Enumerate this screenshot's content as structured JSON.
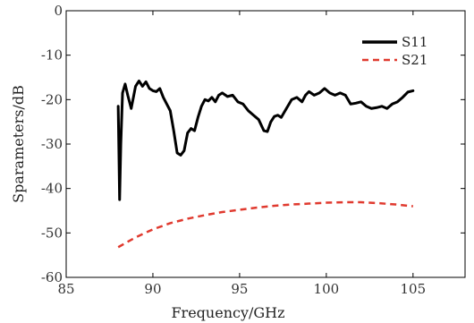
{
  "chart_data": {
    "type": "line",
    "xlabel": "Frequency/GHz",
    "ylabel": "Sparameters/dB",
    "xlim": [
      85,
      108
    ],
    "ylim": [
      -60,
      0
    ],
    "xticks": [
      85,
      90,
      95,
      100,
      105
    ],
    "yticks": [
      0,
      -10,
      -20,
      -30,
      -40,
      -50,
      -60
    ],
    "xtick_labels": [
      "85",
      "90",
      "95",
      "100",
      "105"
    ],
    "ytick_labels": [
      "0",
      "-10",
      "-20",
      "-30",
      "-40",
      "-50",
      "-60"
    ],
    "grid": false,
    "legend_position": "top-right",
    "series": [
      {
        "name": "S11",
        "color": "#000000",
        "style": "solid",
        "x": [
          88.0,
          88.08,
          88.15,
          88.25,
          88.4,
          88.55,
          88.75,
          89.0,
          89.2,
          89.4,
          89.6,
          89.8,
          90.0,
          90.2,
          90.4,
          90.6,
          90.8,
          91.0,
          91.2,
          91.4,
          91.6,
          91.8,
          92.0,
          92.2,
          92.4,
          92.6,
          92.8,
          93.0,
          93.2,
          93.4,
          93.6,
          93.8,
          94.0,
          94.3,
          94.6,
          94.9,
          95.2,
          95.5,
          95.8,
          96.1,
          96.4,
          96.6,
          96.8,
          97.0,
          97.2,
          97.4,
          97.7,
          98.0,
          98.3,
          98.6,
          98.8,
          99.0,
          99.3,
          99.6,
          99.9,
          100.2,
          100.5,
          100.8,
          101.1,
          101.4,
          101.7,
          102.0,
          102.3,
          102.6,
          102.9,
          103.2,
          103.5,
          103.8,
          104.1,
          104.4,
          104.7,
          105.0
        ],
        "y": [
          -21.5,
          -42.5,
          -30.0,
          -18.5,
          -16.5,
          -19.0,
          -22.0,
          -17.0,
          -15.8,
          -17.0,
          -16.0,
          -17.5,
          -18.0,
          -18.2,
          -17.5,
          -19.5,
          -21.0,
          -22.5,
          -27.0,
          -32.0,
          -32.5,
          -31.5,
          -27.5,
          -26.5,
          -27.0,
          -24.0,
          -21.5,
          -20.0,
          -20.3,
          -19.5,
          -20.5,
          -19.0,
          -18.5,
          -19.3,
          -19.0,
          -20.5,
          -21.0,
          -22.5,
          -23.5,
          -24.5,
          -27.0,
          -27.2,
          -25.0,
          -23.8,
          -23.5,
          -24.0,
          -22.0,
          -20.0,
          -19.5,
          -20.5,
          -19.0,
          -18.2,
          -19.0,
          -18.5,
          -17.5,
          -18.5,
          -19.0,
          -18.5,
          -19.0,
          -21.0,
          -20.8,
          -20.5,
          -21.5,
          -22.0,
          -21.8,
          -21.5,
          -22.0,
          -21.0,
          -20.5,
          -19.5,
          -18.3,
          -18.0
        ]
      },
      {
        "name": "S21",
        "color": "#e03a2f",
        "style": "dashed",
        "x": [
          88.0,
          89.0,
          90.0,
          91.0,
          92.0,
          93.0,
          94.0,
          95.0,
          96.0,
          97.0,
          98.0,
          99.0,
          100.0,
          101.0,
          102.0,
          103.0,
          104.0,
          105.0
        ],
        "y": [
          -53.2,
          -51.0,
          -49.2,
          -47.8,
          -46.8,
          -46.0,
          -45.3,
          -44.8,
          -44.3,
          -43.9,
          -43.6,
          -43.4,
          -43.2,
          -43.1,
          -43.1,
          -43.3,
          -43.6,
          -44.0
        ]
      }
    ]
  }
}
